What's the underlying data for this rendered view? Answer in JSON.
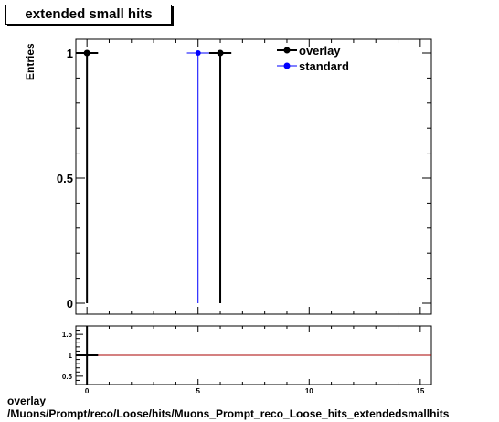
{
  "title": "extended small hits",
  "ylabel": "Entries",
  "caption_line1": "overlay",
  "caption_line2": "/Muons/Prompt/reco/Loose/hits/Muons_Prompt_reco_Loose_hits_extendedsmallhits",
  "chart_data": {
    "type": "scatter",
    "title": "extended small hits",
    "xlabel": "extendedsmallhits",
    "ylabel": "Entries",
    "xlim": [
      -0.5,
      15.5
    ],
    "ylim": [
      0,
      1.05
    ],
    "x_ticks": [
      0,
      5,
      10,
      15
    ],
    "y_ticks": [
      0,
      0.5,
      1
    ],
    "y_tick_labels": [
      "0",
      "0.5",
      "1"
    ],
    "legend_position": "top-right",
    "series": [
      {
        "name": "overlay",
        "color": "#000000",
        "points": [
          {
            "x": 0,
            "y": 1,
            "xerr": 0.5
          },
          {
            "x": 6,
            "y": 1,
            "xerr": 0.5
          }
        ]
      },
      {
        "name": "standard",
        "color": "#0000ff",
        "points": [
          {
            "x": 5,
            "y": 1,
            "xerr": 0.5
          }
        ]
      }
    ],
    "ratio_panel": {
      "ylim": [
        0.3,
        1.7
      ],
      "y_ticks": [
        0.5,
        1,
        1.5
      ],
      "y_tick_labels": [
        "0.5",
        "1",
        "1.5"
      ],
      "reference_line": 1,
      "reference_color": "#aa0000"
    }
  }
}
